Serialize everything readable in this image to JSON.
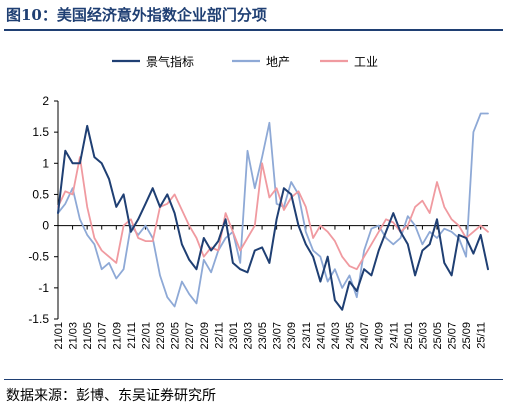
{
  "figure": {
    "title": "图10：美国经济意外指数企业部门分项",
    "source": "数据来源：彭博、东吴证券研究所"
  },
  "chart_data": {
    "type": "line",
    "title": "图10：美国经济意外指数企业部门分项",
    "xlabel": "",
    "ylabel": "",
    "ylim": [
      -1.5,
      2
    ],
    "yticks": [
      -1.5,
      -1,
      -0.5,
      0,
      0.5,
      1,
      1.5,
      2
    ],
    "ytick_labels": [
      "-1.5",
      "-1",
      "-0.5",
      "0",
      "0.5",
      "1",
      "1.5",
      "2"
    ],
    "x_start": "21/01",
    "x_end": "25/12",
    "xticks": [
      "21/01",
      "21/03",
      "21/05",
      "21/07",
      "21/09",
      "21/11",
      "22/01",
      "22/03",
      "22/05",
      "22/07",
      "22/09",
      "22/11",
      "23/01",
      "23/03",
      "23/05",
      "23/07",
      "23/09",
      "23/11",
      "24/01",
      "24/03",
      "24/05",
      "24/07",
      "24/09",
      "24/11",
      "25/01",
      "25/03",
      "25/05",
      "25/07",
      "25/09",
      "25/11"
    ],
    "legend": {
      "position": "top",
      "entries": [
        "景气指标",
        "地产",
        "工业"
      ]
    },
    "grid": false,
    "series": [
      {
        "name": "景气指标",
        "color": "#1f3f73",
        "points": [
          [
            "21/01",
            0.2
          ],
          [
            "21/02",
            1.2
          ],
          [
            "21/03",
            1.0
          ],
          [
            "21/04",
            1.0
          ],
          [
            "21/05",
            1.6
          ],
          [
            "21/06",
            1.1
          ],
          [
            "21/07",
            1.0
          ],
          [
            "21/08",
            0.75
          ],
          [
            "21/09",
            0.3
          ],
          [
            "21/10",
            0.5
          ],
          [
            "21/11",
            -0.1
          ],
          [
            "21/12",
            0.1
          ],
          [
            "22/01",
            0.35
          ],
          [
            "22/02",
            0.6
          ],
          [
            "22/03",
            0.3
          ],
          [
            "22/04",
            0.5
          ],
          [
            "22/05",
            0.2
          ],
          [
            "22/06",
            -0.3
          ],
          [
            "22/07",
            -0.55
          ],
          [
            "22/08",
            -0.7
          ],
          [
            "22/09",
            -0.2
          ],
          [
            "22/10",
            -0.4
          ],
          [
            "22/11",
            -0.25
          ],
          [
            "22/12",
            0.1
          ],
          [
            "23/01",
            -0.6
          ],
          [
            "23/02",
            -0.7
          ],
          [
            "23/03",
            -0.75
          ],
          [
            "23/04",
            -0.4
          ],
          [
            "23/05",
            -0.35
          ],
          [
            "23/06",
            -0.6
          ],
          [
            "23/07",
            0.1
          ],
          [
            "23/08",
            0.6
          ],
          [
            "23/09",
            0.5
          ],
          [
            "23/10",
            0.0
          ],
          [
            "23/11",
            -0.3
          ],
          [
            "23/12",
            -0.5
          ],
          [
            "24/01",
            -0.9
          ],
          [
            "24/02",
            -0.5
          ],
          [
            "24/03",
            -1.2
          ],
          [
            "24/04",
            -1.35
          ],
          [
            "24/05",
            -0.9
          ],
          [
            "24/06",
            -1.05
          ],
          [
            "24/07",
            -0.7
          ],
          [
            "24/08",
            -0.8
          ],
          [
            "24/09",
            -0.4
          ],
          [
            "24/10",
            -0.1
          ],
          [
            "24/11",
            0.2
          ],
          [
            "24/12",
            -0.1
          ],
          [
            "25/01",
            -0.3
          ],
          [
            "25/02",
            -0.8
          ],
          [
            "25/03",
            -0.4
          ],
          [
            "25/04",
            -0.3
          ],
          [
            "25/05",
            0.1
          ],
          [
            "25/06",
            -0.6
          ],
          [
            "25/07",
            -0.8
          ],
          [
            "25/08",
            -0.15
          ],
          [
            "25/09",
            -0.2
          ],
          [
            "25/10",
            -0.45
          ],
          [
            "25/11",
            -0.15
          ],
          [
            "25/12",
            -0.7
          ]
        ]
      },
      {
        "name": "地产",
        "color": "#8ea9d6",
        "points": [
          [
            "21/01",
            0.2
          ],
          [
            "21/02",
            0.35
          ],
          [
            "21/03",
            0.6
          ],
          [
            "21/04",
            0.1
          ],
          [
            "21/05",
            -0.15
          ],
          [
            "21/06",
            -0.3
          ],
          [
            "21/07",
            -0.7
          ],
          [
            "21/08",
            -0.6
          ],
          [
            "21/09",
            -0.85
          ],
          [
            "21/10",
            -0.7
          ],
          [
            "21/11",
            0.0
          ],
          [
            "21/12",
            -0.15
          ],
          [
            "22/01",
            0.0
          ],
          [
            "22/02",
            -0.2
          ],
          [
            "22/03",
            -0.8
          ],
          [
            "22/04",
            -1.15
          ],
          [
            "22/05",
            -1.3
          ],
          [
            "22/06",
            -0.9
          ],
          [
            "22/07",
            -1.1
          ],
          [
            "22/08",
            -1.25
          ],
          [
            "22/09",
            -0.55
          ],
          [
            "22/10",
            -0.75
          ],
          [
            "22/11",
            -0.4
          ],
          [
            "22/12",
            -0.2
          ],
          [
            "23/01",
            -0.1
          ],
          [
            "23/02",
            -0.6
          ],
          [
            "23/03",
            1.2
          ],
          [
            "23/04",
            0.6
          ],
          [
            "23/05",
            1.1
          ],
          [
            "23/06",
            1.65
          ],
          [
            "23/07",
            0.35
          ],
          [
            "23/08",
            0.3
          ],
          [
            "23/09",
            0.7
          ],
          [
            "23/10",
            0.5
          ],
          [
            "23/11",
            -0.1
          ],
          [
            "23/12",
            -0.4
          ],
          [
            "24/01",
            -0.5
          ],
          [
            "24/02",
            -0.9
          ],
          [
            "24/03",
            -0.7
          ],
          [
            "24/04",
            -1.0
          ],
          [
            "24/05",
            -0.8
          ],
          [
            "24/06",
            -1.15
          ],
          [
            "24/07",
            -0.4
          ],
          [
            "24/08",
            -0.05
          ],
          [
            "24/09",
            0.0
          ],
          [
            "24/10",
            -0.2
          ],
          [
            "24/11",
            -0.3
          ],
          [
            "24/12",
            -0.2
          ],
          [
            "25/01",
            0.15
          ],
          [
            "25/02",
            0.0
          ],
          [
            "25/03",
            -0.3
          ],
          [
            "25/04",
            -0.1
          ],
          [
            "25/05",
            -0.2
          ],
          [
            "25/06",
            -0.05
          ],
          [
            "25/07",
            -0.1
          ],
          [
            "25/08",
            -0.2
          ],
          [
            "25/09",
            -0.5
          ],
          [
            "25/10",
            1.5
          ],
          [
            "25/11",
            1.8
          ],
          [
            "25/12",
            1.8
          ]
        ]
      },
      {
        "name": "工业",
        "color": "#f09aa0",
        "points": [
          [
            "21/01",
            0.3
          ],
          [
            "21/02",
            0.55
          ],
          [
            "21/03",
            0.5
          ],
          [
            "21/04",
            1.1
          ],
          [
            "21/05",
            0.3
          ],
          [
            "21/06",
            -0.2
          ],
          [
            "21/07",
            -0.4
          ],
          [
            "21/08",
            -0.5
          ],
          [
            "21/09",
            -0.6
          ],
          [
            "21/10",
            0.0
          ],
          [
            "21/11",
            0.1
          ],
          [
            "21/12",
            -0.2
          ],
          [
            "22/01",
            -0.25
          ],
          [
            "22/02",
            -0.25
          ],
          [
            "22/03",
            0.3
          ],
          [
            "22/04",
            0.35
          ],
          [
            "22/05",
            0.5
          ],
          [
            "22/06",
            0.25
          ],
          [
            "22/07",
            0.0
          ],
          [
            "22/08",
            -0.2
          ],
          [
            "22/09",
            -0.5
          ],
          [
            "22/10",
            -0.35
          ],
          [
            "22/11",
            -0.4
          ],
          [
            "22/12",
            0.2
          ],
          [
            "23/01",
            -0.1
          ],
          [
            "23/02",
            -0.4
          ],
          [
            "23/03",
            -0.2
          ],
          [
            "23/04",
            0.0
          ],
          [
            "23/05",
            1.0
          ],
          [
            "23/06",
            0.45
          ],
          [
            "23/07",
            0.6
          ],
          [
            "23/08",
            0.25
          ],
          [
            "23/09",
            0.45
          ],
          [
            "23/10",
            0.55
          ],
          [
            "23/11",
            0.3
          ],
          [
            "23/12",
            -0.2
          ],
          [
            "24/01",
            0.0
          ],
          [
            "24/02",
            -0.1
          ],
          [
            "24/03",
            -0.25
          ],
          [
            "24/04",
            -0.5
          ],
          [
            "24/05",
            -0.65
          ],
          [
            "24/06",
            -0.7
          ],
          [
            "24/07",
            -0.5
          ],
          [
            "24/08",
            -0.3
          ],
          [
            "24/09",
            -0.1
          ],
          [
            "24/10",
            0.1
          ],
          [
            "24/11",
            0.05
          ],
          [
            "24/12",
            -0.1
          ],
          [
            "25/01",
            0.0
          ],
          [
            "25/02",
            0.3
          ],
          [
            "25/03",
            0.4
          ],
          [
            "25/04",
            0.2
          ],
          [
            "25/05",
            0.7
          ],
          [
            "25/06",
            0.3
          ],
          [
            "25/07",
            0.1
          ],
          [
            "25/08",
            0.0
          ],
          [
            "25/09",
            -0.2
          ],
          [
            "25/10",
            -0.1
          ],
          [
            "25/11",
            0.0
          ],
          [
            "25/12",
            -0.1
          ]
        ]
      }
    ]
  }
}
